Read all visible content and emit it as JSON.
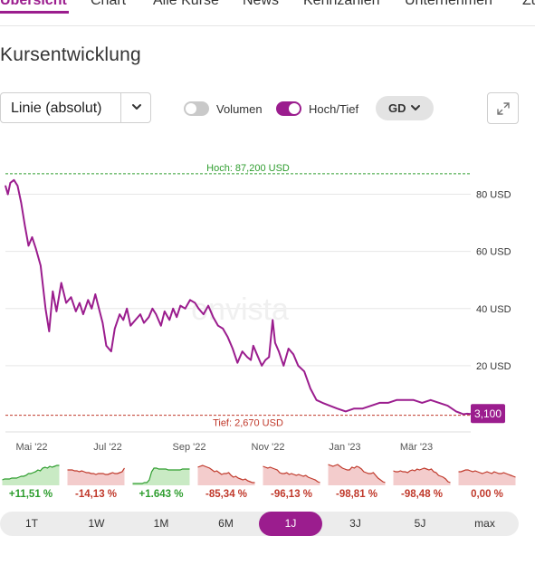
{
  "nav": {
    "tabs": [
      "Übersicht",
      "Chart",
      "Alle Kurse",
      "News",
      "Kennzahlen",
      "Unternehmen",
      "Zu"
    ],
    "active_index": 0
  },
  "section": {
    "title": "Kursentwicklung"
  },
  "controls": {
    "chart_type": "Linie (absolut)",
    "volumen_label": "Volumen",
    "volumen_on": false,
    "hochtief_label": "Hoch/Tief",
    "hochtief_on": true,
    "moving_average_label": "GD"
  },
  "chart_data": {
    "type": "line",
    "title": "",
    "xlabel": "",
    "ylabel": "",
    "ylim": [
      0,
      90
    ],
    "y_ticks": [
      20,
      40,
      60,
      80
    ],
    "y_tick_labels": [
      "20 USD",
      "40 USD",
      "60 USD",
      "80 USD"
    ],
    "x_tick_labels": [
      "Mai '22",
      "Jul '22",
      "Sep '22",
      "Nov '22",
      "Jan '23",
      "Mär '23"
    ],
    "grid": true,
    "watermark": "onvista",
    "high": {
      "value": 87.2,
      "label": "Hoch: 87,200 USD"
    },
    "low": {
      "value": 2.67,
      "label": "Tief: 2,670 USD"
    },
    "last_price": {
      "value": 3.1,
      "label": "3,100"
    },
    "colors": {
      "line": "#9b1d8e",
      "high": "#2e9d2e",
      "low": "#c0392b",
      "grid": "#e6e6e6"
    },
    "series": [
      {
        "x": [
          "2022-04-05",
          "2022-04-07",
          "2022-04-09",
          "2022-04-12",
          "2022-04-15",
          "2022-04-18",
          "2022-04-21",
          "2022-04-24",
          "2022-04-27",
          "2022-04-30",
          "2022-05-04",
          "2022-05-08",
          "2022-05-11",
          "2022-05-14",
          "2022-05-17",
          "2022-05-21",
          "2022-05-25",
          "2022-05-29",
          "2022-06-02",
          "2022-06-05",
          "2022-06-08",
          "2022-06-12",
          "2022-06-15",
          "2022-06-18",
          "2022-06-21",
          "2022-06-24",
          "2022-06-27",
          "2022-07-01",
          "2022-07-04",
          "2022-07-08",
          "2022-07-11",
          "2022-07-14",
          "2022-07-17",
          "2022-07-21",
          "2022-07-25",
          "2022-07-28",
          "2022-08-01",
          "2022-08-04",
          "2022-08-07",
          "2022-08-11",
          "2022-08-14",
          "2022-08-18",
          "2022-08-21",
          "2022-08-24",
          "2022-08-27",
          "2022-08-31",
          "2022-09-04",
          "2022-09-08",
          "2022-09-11",
          "2022-09-15",
          "2022-09-19",
          "2022-09-23",
          "2022-09-27",
          "2022-10-01",
          "2022-10-05",
          "2022-10-09",
          "2022-10-13",
          "2022-10-17",
          "2022-10-21",
          "2022-10-24",
          "2022-10-26",
          "2022-10-29",
          "2022-11-02",
          "2022-11-05",
          "2022-11-08",
          "2022-11-11",
          "2022-11-13",
          "2022-11-16",
          "2022-11-20",
          "2022-11-24",
          "2022-11-28",
          "2022-12-02",
          "2022-12-07",
          "2022-12-12",
          "2022-12-17",
          "2022-12-22",
          "2022-12-28",
          "2023-01-03",
          "2023-01-10",
          "2023-01-17",
          "2023-01-24",
          "2023-01-31",
          "2023-02-07",
          "2023-02-14",
          "2023-02-21",
          "2023-02-28",
          "2023-03-07",
          "2023-03-14",
          "2023-03-21",
          "2023-03-28",
          "2023-04-04",
          "2023-04-11",
          "2023-04-17",
          "2023-04-20",
          "2023-04-23"
        ],
        "values": [
          83,
          80,
          84,
          85,
          83,
          77,
          69,
          62,
          65,
          61,
          55,
          40,
          32,
          46,
          39,
          49,
          42,
          44,
          39,
          42,
          38,
          43,
          40,
          45,
          40,
          35,
          27,
          25,
          33,
          38,
          36,
          40,
          34,
          36,
          38,
          35,
          37,
          40,
          38,
          34,
          39,
          36,
          40,
          37,
          41,
          40,
          43,
          42,
          40,
          38,
          41,
          37,
          34,
          33,
          30,
          26,
          21,
          25,
          23,
          22,
          27,
          24,
          20,
          22,
          23,
          36,
          28,
          25,
          20,
          26,
          24,
          20,
          18,
          12,
          8,
          7,
          6,
          5,
          4,
          5,
          5,
          6,
          7,
          7,
          8,
          8,
          8,
          7,
          8,
          7,
          6,
          4,
          3,
          3.2,
          3.1
        ]
      }
    ]
  },
  "performance": [
    {
      "label": "+11,51 %",
      "positive": true,
      "points": [
        5,
        6,
        6,
        6,
        7,
        7,
        7,
        8,
        9,
        9,
        10,
        12,
        12,
        13,
        14,
        16,
        15,
        18,
        19,
        18,
        20,
        19,
        20,
        21,
        21
      ]
    },
    {
      "label": "-14,13 %",
      "positive": false,
      "points": [
        16,
        16,
        16,
        15,
        15,
        14,
        15,
        14,
        13,
        13,
        12,
        12,
        11,
        12,
        12,
        12,
        11,
        11,
        12,
        13,
        12,
        12,
        13,
        14,
        18
      ]
    },
    {
      "label": "+1.643 %",
      "positive": true,
      "points": [
        1,
        1,
        1,
        1,
        1,
        2,
        2,
        5,
        14,
        18,
        18,
        17,
        17,
        17,
        17,
        16,
        16,
        16,
        16,
        16,
        16,
        17,
        17,
        17,
        17
      ]
    },
    {
      "label": "-85,34 %",
      "positive": false,
      "points": [
        19,
        20,
        21,
        20,
        19,
        18,
        16,
        14,
        15,
        13,
        11,
        12,
        12,
        13,
        10,
        8,
        9,
        7,
        6,
        5,
        6,
        4,
        3,
        2,
        2
      ]
    },
    {
      "label": "-96,13 %",
      "positive": false,
      "points": [
        20,
        19,
        18,
        19,
        18,
        17,
        16,
        13,
        12,
        12,
        13,
        11,
        12,
        11,
        10,
        11,
        10,
        9,
        10,
        8,
        7,
        6,
        5,
        3,
        2
      ]
    },
    {
      "label": "-98,81 %",
      "positive": false,
      "points": [
        22,
        21,
        20,
        21,
        22,
        20,
        18,
        17,
        16,
        16,
        19,
        18,
        20,
        19,
        17,
        14,
        13,
        12,
        12,
        13,
        10,
        7,
        5,
        3,
        2
      ]
    },
    {
      "label": "-98,48 %",
      "positive": false,
      "points": [
        15,
        14,
        14,
        15,
        14,
        14,
        13,
        15,
        16,
        15,
        17,
        16,
        17,
        18,
        17,
        16,
        17,
        14,
        13,
        10,
        9,
        8,
        6,
        3,
        2
      ]
    },
    {
      "label": "0,00 %",
      "positive": false,
      "points": [
        14,
        14,
        15,
        16,
        16,
        15,
        14,
        15,
        14,
        13,
        12,
        13,
        14,
        13,
        12,
        14,
        13,
        12,
        12,
        13,
        12,
        11,
        10,
        9,
        8
      ]
    }
  ],
  "colors": {
    "positive": "#2e9d2e",
    "negative": "#c0392b",
    "positive_fill": "#c9eac4",
    "negative_fill": "#f3cccc"
  },
  "ranges": {
    "items": [
      "1T",
      "1W",
      "1M",
      "6M",
      "1J",
      "3J",
      "5J",
      "max"
    ],
    "active_index": 4
  }
}
